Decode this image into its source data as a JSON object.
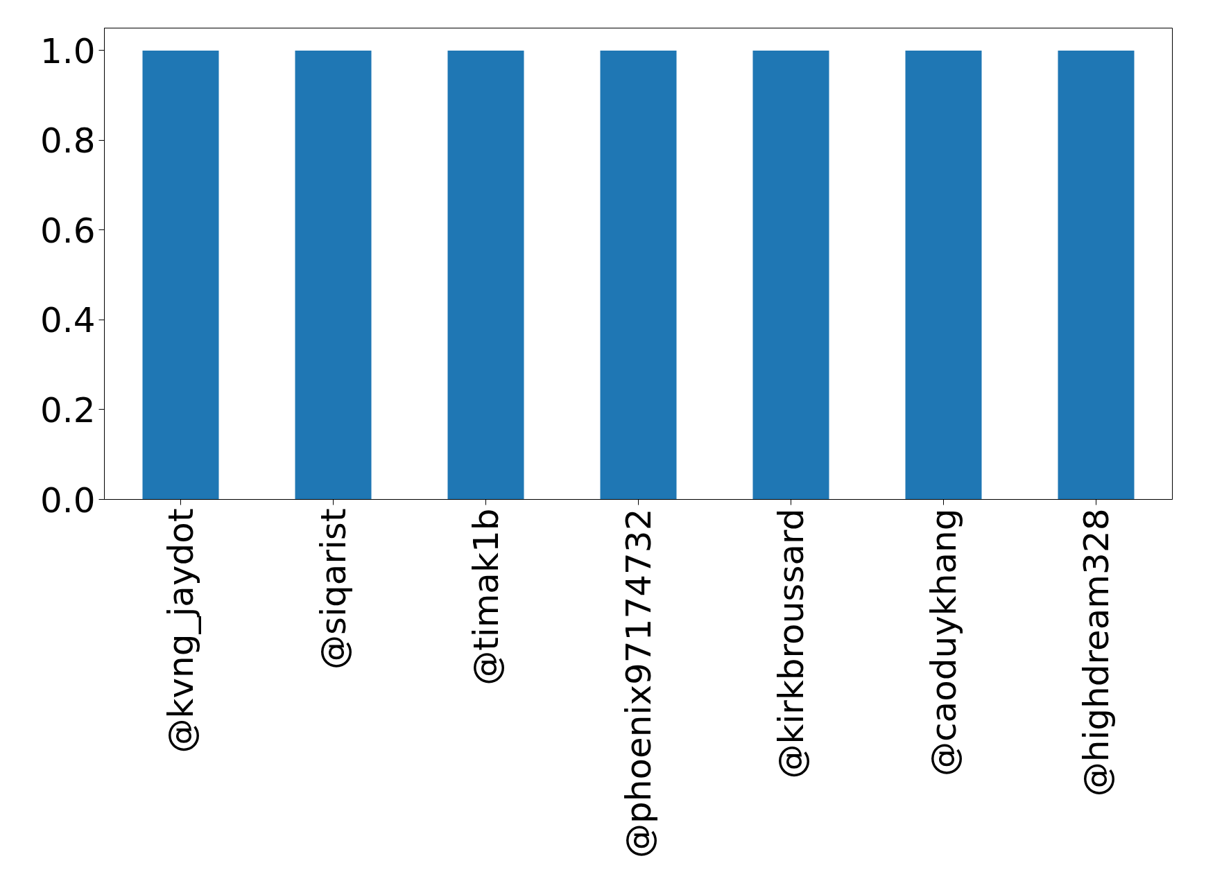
{
  "chart_data": {
    "type": "bar",
    "categories": [
      "@kvng_jaydot",
      "@siqarist",
      "@timak1b",
      "@phoenix97174732",
      "@kirkbroussard",
      "@caoduykhang",
      "@highdream328"
    ],
    "values": [
      1,
      1,
      1,
      1,
      1,
      1,
      1
    ],
    "color": "#1f77b4",
    "ylim": [
      0,
      1.05
    ],
    "yticks": [
      {
        "value": 0,
        "label": "0.0"
      },
      {
        "value": 0.2,
        "label": "0.2"
      },
      {
        "value": 0.4,
        "label": "0.4"
      },
      {
        "value": 0.6,
        "label": "0.6"
      },
      {
        "value": 0.8,
        "label": "0.8"
      },
      {
        "value": 1,
        "label": "1.0"
      }
    ],
    "grid": false
  }
}
